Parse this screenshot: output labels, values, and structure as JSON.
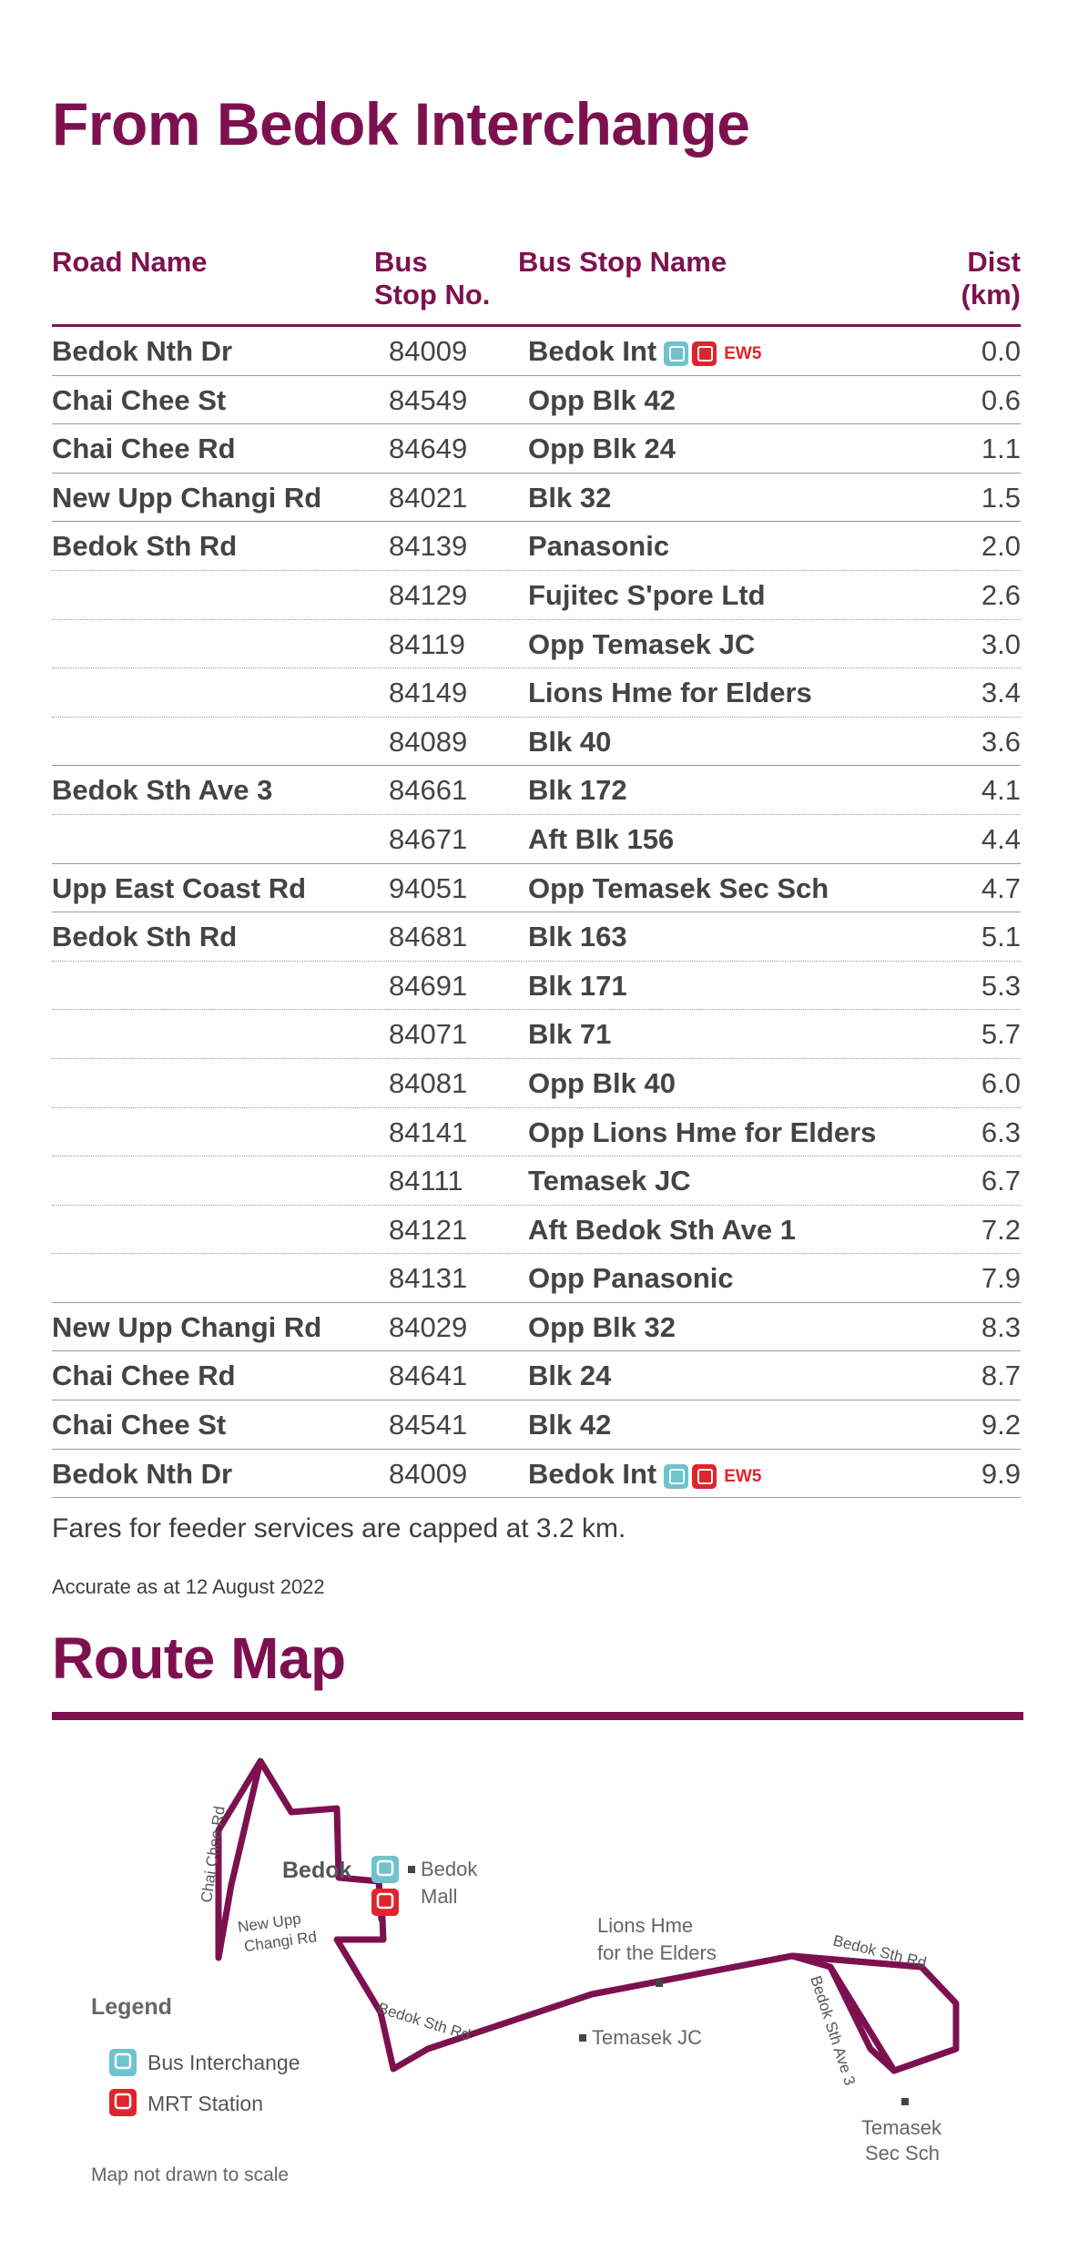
{
  "title": "From Bedok Interchange",
  "table": {
    "headers": {
      "road": "Road Name",
      "stop_line1": "Bus",
      "stop_line2": "Stop No.",
      "name": "Bus Stop Name",
      "dist_line1": "Dist",
      "dist_line2": "(km)"
    },
    "rows": [
      {
        "road": "Bedok Nth Dr",
        "stop": "84009",
        "name": "Bedok Int",
        "dist": "0.0",
        "icons": true,
        "line": "EW5"
      },
      {
        "road": "Chai Chee St",
        "stop": "84549",
        "name": "Opp Blk 42",
        "dist": "0.6"
      },
      {
        "road": "Chai Chee Rd",
        "stop": "84649",
        "name": "Opp Blk 24",
        "dist": "1.1"
      },
      {
        "road": "New Upp Changi Rd",
        "stop": "84021",
        "name": "Blk 32",
        "dist": "1.5"
      },
      {
        "road": "Bedok Sth Rd",
        "stop": "84139",
        "name": "Panasonic",
        "dist": "2.0"
      },
      {
        "road": "",
        "stop": "84129",
        "name": "Fujitec S'pore Ltd",
        "dist": "2.6"
      },
      {
        "road": "",
        "stop": "84119",
        "name": "Opp Temasek JC",
        "dist": "3.0"
      },
      {
        "road": "",
        "stop": "84149",
        "name": "Lions Hme for Elders",
        "dist": "3.4"
      },
      {
        "road": "",
        "stop": "84089",
        "name": "Blk 40",
        "dist": "3.6"
      },
      {
        "road": "Bedok Sth Ave 3",
        "stop": "84661",
        "name": "Blk 172",
        "dist": "4.1"
      },
      {
        "road": "",
        "stop": "84671",
        "name": "Aft Blk 156",
        "dist": "4.4"
      },
      {
        "road": "Upp East Coast Rd",
        "stop": "94051",
        "name": "Opp Temasek Sec Sch",
        "dist": "4.7"
      },
      {
        "road": "Bedok Sth Rd",
        "stop": "84681",
        "name": "Blk 163",
        "dist": "5.1"
      },
      {
        "road": "",
        "stop": "84691",
        "name": "Blk 171",
        "dist": "5.3"
      },
      {
        "road": "",
        "stop": "84071",
        "name": "Blk 71",
        "dist": "5.7"
      },
      {
        "road": "",
        "stop": "84081",
        "name": "Opp Blk 40",
        "dist": "6.0"
      },
      {
        "road": "",
        "stop": "84141",
        "name": "Opp Lions Hme for Elders",
        "dist": "6.3"
      },
      {
        "road": "",
        "stop": "84111",
        "name": "Temasek JC",
        "dist": "6.7"
      },
      {
        "road": "",
        "stop": "84121",
        "name": "Aft Bedok Sth Ave 1",
        "dist": "7.2"
      },
      {
        "road": "",
        "stop": "84131",
        "name": "Opp Panasonic",
        "dist": "7.9"
      },
      {
        "road": "New Upp Changi Rd",
        "stop": "84029",
        "name": "Opp Blk 32",
        "dist": "8.3"
      },
      {
        "road": "Chai Chee Rd",
        "stop": "84641",
        "name": "Blk 24",
        "dist": "8.7"
      },
      {
        "road": "Chai Chee St",
        "stop": "84541",
        "name": "Blk 42",
        "dist": "9.2"
      },
      {
        "road": "Bedok Nth Dr",
        "stop": "84009",
        "name": "Bedok Int",
        "dist": "9.9",
        "icons": true,
        "line": "EW5"
      }
    ]
  },
  "fares_note": "Fares for feeder services are capped at 3.2 km.",
  "accurate_note": "Accurate as at 12 August 2022",
  "route_map": {
    "title": "Route Map",
    "labels": {
      "chai_chee_rd": "Chai Chee Rd",
      "bedok": "Bedok",
      "bedok_mall_1": "Bedok",
      "bedok_mall_2": "Mall",
      "new_upp_changi_1": "New Upp",
      "new_upp_changi_2": "Changi Rd",
      "lions_1": "Lions Hme",
      "lions_2": "for the Elders",
      "bedok_sth_rd_right": "Bedok Sth Rd",
      "bedok_sth_rd_left": "Bedok Sth Rd",
      "bedok_sth_ave3": "Bedok Sth Ave 3",
      "temasek_jc": "Temasek JC",
      "temasek_sec_1": "Temasek",
      "temasek_sec_2": "Sec Sch"
    },
    "legend": {
      "title": "Legend",
      "bus_interchange": "Bus Interchange",
      "mrt_station": "MRT Station"
    },
    "note": "Map not drawn to scale",
    "colors": {
      "route": "#7d1150",
      "bus_icon": "#6fc3cc",
      "mrt_icon": "#e0242b"
    }
  }
}
